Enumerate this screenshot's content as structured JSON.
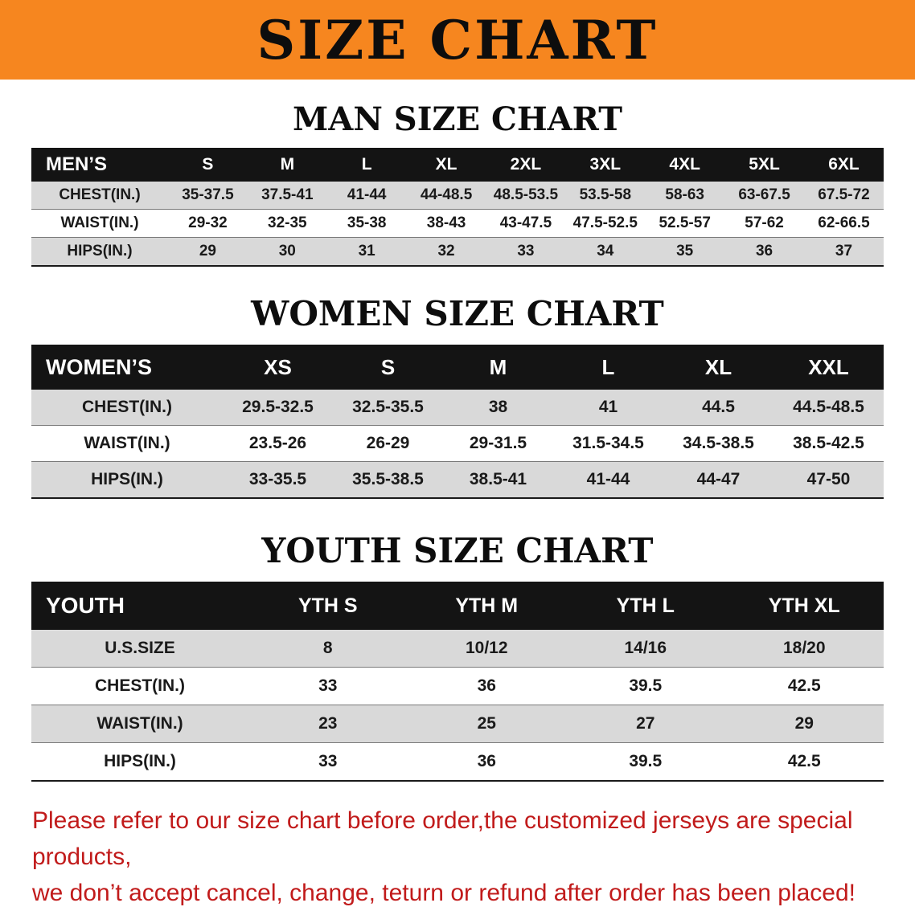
{
  "banner": {
    "title": "SIZE CHART"
  },
  "colors": {
    "banner_bg": "#f6861f",
    "table_header_bg": "#141414",
    "row_alt_bg": "#d9d9d9",
    "disclaimer_red": "#c11b1b"
  },
  "sections": [
    {
      "heading": "MAN SIZE CHART"
    },
    {
      "heading": "WOMEN SIZE CHART"
    },
    {
      "heading": "YOUTH SIZE CHART"
    }
  ],
  "chart_data": [
    {
      "type": "table",
      "title": "MAN SIZE CHART",
      "columns": [
        "MEN’S",
        "S",
        "M",
        "L",
        "XL",
        "2XL",
        "3XL",
        "4XL",
        "5XL",
        "6XL"
      ],
      "rows": [
        [
          "CHEST(IN.)",
          "35-37.5",
          "37.5-41",
          "41-44",
          "44-48.5",
          "48.5-53.5",
          "53.5-58",
          "58-63",
          "63-67.5",
          "67.5-72"
        ],
        [
          "WAIST(IN.)",
          "29-32",
          "32-35",
          "35-38",
          "38-43",
          "43-47.5",
          "47.5-52.5",
          "52.5-57",
          "57-62",
          "62-66.5"
        ],
        [
          "HIPS(IN.)",
          "29",
          "30",
          "31",
          "32",
          "33",
          "34",
          "35",
          "36",
          "37"
        ]
      ]
    },
    {
      "type": "table",
      "title": "WOMEN SIZE CHART",
      "columns": [
        "WOMEN’S",
        "XS",
        "S",
        "M",
        "L",
        "XL",
        "XXL"
      ],
      "rows": [
        [
          "CHEST(IN.)",
          "29.5-32.5",
          "32.5-35.5",
          "38",
          "41",
          "44.5",
          "44.5-48.5"
        ],
        [
          "WAIST(IN.)",
          "23.5-26",
          "26-29",
          "29-31.5",
          "31.5-34.5",
          "34.5-38.5",
          "38.5-42.5"
        ],
        [
          "HIPS(IN.)",
          "33-35.5",
          "35.5-38.5",
          "38.5-41",
          "41-44",
          "44-47",
          "47-50"
        ]
      ]
    },
    {
      "type": "table",
      "title": "YOUTH SIZE CHART",
      "columns": [
        "YOUTH",
        "YTH S",
        "YTH M",
        "YTH L",
        "YTH XL"
      ],
      "rows": [
        [
          "U.S.SIZE",
          "8",
          "10/12",
          "14/16",
          "18/20"
        ],
        [
          "CHEST(IN.)",
          "33",
          "36",
          "39.5",
          "42.5"
        ],
        [
          "WAIST(IN.)",
          "23",
          "25",
          "27",
          "29"
        ],
        [
          "HIPS(IN.)",
          "33",
          "36",
          "39.5",
          "42.5"
        ]
      ]
    }
  ],
  "footer": {
    "lines": [
      "Please refer to our size chart before order,the customized jerseys are special products,",
      "we don’t accept cancel, change, teturn or refund after order has been placed!"
    ]
  }
}
